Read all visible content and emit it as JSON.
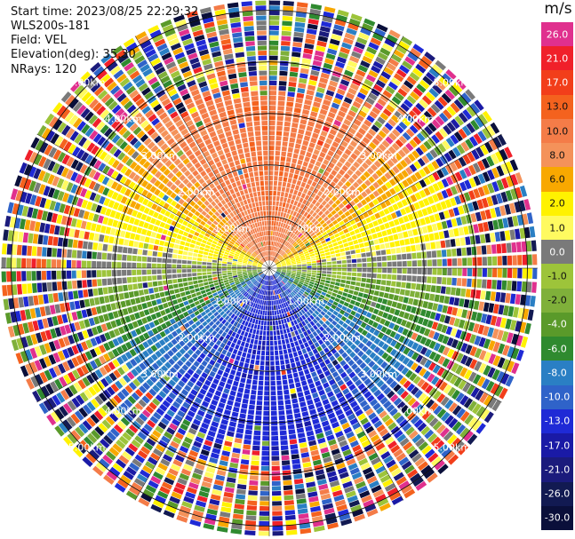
{
  "header": {
    "start_time": "Start time: 2023/08/25 22:29:32",
    "instrument": "WLS200s-181",
    "field": "Field: VEL",
    "elevation": "Elevation(deg): 35.30",
    "nrays": "NRays: 120"
  },
  "colorbar": {
    "unit": "m/s",
    "levels": [
      {
        "label": "26.0",
        "color": "#e0308e"
      },
      {
        "label": "21.0",
        "color": "#f0202a"
      },
      {
        "label": "17.0",
        "color": "#f23e1a"
      },
      {
        "label": "13.0",
        "color": "#f4621e"
      },
      {
        "label": "10.0",
        "color": "#f47c48"
      },
      {
        "label": "8.0",
        "color": "#f4925a"
      },
      {
        "label": "6.0",
        "color": "#f8a800"
      },
      {
        "label": "2.0",
        "color": "#fff200"
      },
      {
        "label": "1.0",
        "color": "#fffa60"
      },
      {
        "label": "0.0",
        "color": "#7a7a7a"
      },
      {
        "label": "-1.0",
        "color": "#9dc43a"
      },
      {
        "label": "-2.0",
        "color": "#7fb03a"
      },
      {
        "label": "-4.0",
        "color": "#5a9a2a"
      },
      {
        "label": "-6.0",
        "color": "#2f8a2f"
      },
      {
        "label": "-8.0",
        "color": "#2a7fc4"
      },
      {
        "label": "-10.0",
        "color": "#2f63c9"
      },
      {
        "label": "-13.0",
        "color": "#1f2ad6"
      },
      {
        "label": "-17.0",
        "color": "#1a1aa6"
      },
      {
        "label": "-21.0",
        "color": "#1b1b7c"
      },
      {
        "label": "-26.0",
        "color": "#121a52"
      },
      {
        "label": "-30.0",
        "color": "#0a0f3a"
      }
    ]
  },
  "chart_data": {
    "type": "heatmap",
    "subtype": "polar PPI scan",
    "field": "VEL",
    "units": "m/s",
    "nrays": 120,
    "range_rings_km": [
      1.0,
      2.0,
      3.0,
      4.0,
      5.0
    ],
    "ring_labels": [
      "1.00km",
      "2.00km",
      "3.00km",
      "4.00km",
      "5.00km"
    ],
    "velocity_pattern": {
      "north_sector_mean_ms": 11.0,
      "east_west_axis_mean_ms": 0.0,
      "south_sector_mean_ms": -9.0,
      "clean_data_max_range_km": 3.3
    },
    "colorbar_ticks": [
      "26.0",
      "21.0",
      "17.0",
      "13.0",
      "10.0",
      "8.0",
      "6.0",
      "2.0",
      "1.0",
      "0.0",
      "-1.0",
      "-2.0",
      "-4.0",
      "-6.0",
      "-8.0",
      "-10.0",
      "-13.0",
      "-17.0",
      "-21.0",
      "-26.0",
      "-30.0"
    ]
  }
}
